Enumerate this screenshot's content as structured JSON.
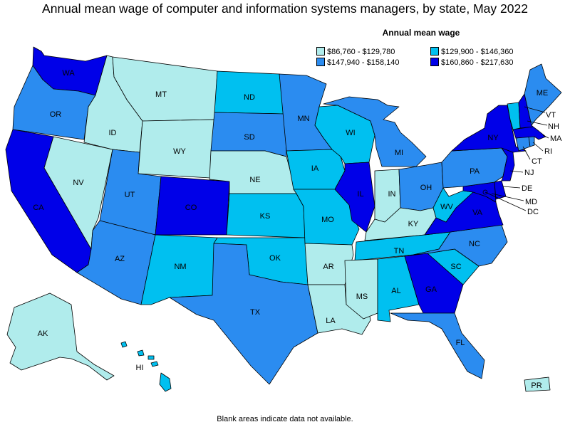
{
  "title": "Annual mean wage of computer and information systems managers, by state, May 2022",
  "legend": {
    "title": "Annual mean wage",
    "bins": [
      {
        "label": "$86,760 - $129,780",
        "color": "#b0ecec"
      },
      {
        "label": "$129,900 - $146,360",
        "color": "#00c0f0"
      },
      {
        "label": "$147,940 - $158,140",
        "color": "#2b8cf0"
      },
      {
        "label": "$160,860 - $217,630",
        "color": "#0000e8"
      }
    ]
  },
  "note": "Blank areas indicate data not available.",
  "states": {
    "WA": 3,
    "OR": 2,
    "CA": 3,
    "NV": 0,
    "ID": 0,
    "MT": 0,
    "WY": 0,
    "UT": 2,
    "AZ": 2,
    "CO": 3,
    "NM": 1,
    "ND": 1,
    "SD": 2,
    "NE": 0,
    "KS": 1,
    "OK": 1,
    "TX": 2,
    "MN": 2,
    "IA": 1,
    "MO": 1,
    "AR": 0,
    "LA": 0,
    "WI": 1,
    "IL": 3,
    "MI": 2,
    "IN": 0,
    "OH": 2,
    "KY": 0,
    "TN": 1,
    "MS": 0,
    "AL": 1,
    "GA": 3,
    "FL": 2,
    "SC": 1,
    "NC": 2,
    "VA": 3,
    "WV": 1,
    "MD": 3,
    "DE": 3,
    "DC": 3,
    "NJ": 3,
    "PA": 2,
    "NY": 3,
    "CT": 2,
    "RI": 2,
    "MA": 3,
    "VT": 1,
    "NH": 3,
    "ME": 2,
    "AK": 0,
    "HI": 1,
    "PR": 0
  }
}
